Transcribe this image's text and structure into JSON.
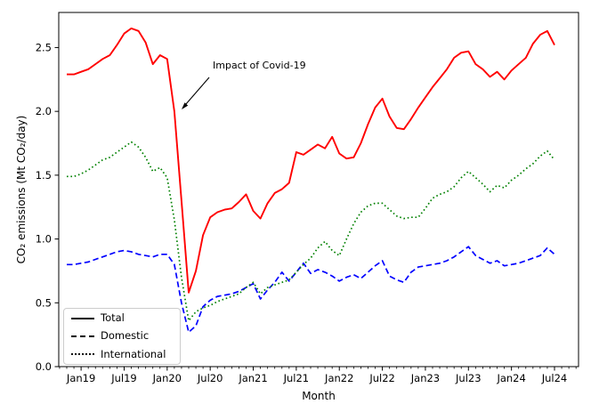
{
  "figure": {
    "background": "#ffffff",
    "annotation": {
      "text": "Impact of Covid-19"
    }
  },
  "chart_data": {
    "type": "line",
    "title": "",
    "xlabel": "Month",
    "ylabel": "CO₂ emissions (Mt CO₂/day)",
    "ylim": [
      0.0,
      2.775
    ],
    "yticks": [
      0.0,
      0.5,
      1.0,
      1.5,
      2.0,
      2.5
    ],
    "ytick_labels": [
      "0.0",
      "0.5",
      "1.0",
      "1.5",
      "2.0",
      "2.5"
    ],
    "xticklabels": [
      "Jan19",
      "Jul19",
      "Jan20",
      "Jul20",
      "Jan21",
      "Jul21",
      "Jan22",
      "Jul22",
      "Jan23",
      "Jul23",
      "Jan24",
      "Jul24"
    ],
    "grid": false,
    "legend_position": "lower left",
    "months": [
      "Nov18",
      "Dec18",
      "Jan19",
      "Feb19",
      "Mar19",
      "Apr19",
      "May19",
      "Jun19",
      "Jul19",
      "Aug19",
      "Sep19",
      "Oct19",
      "Nov19",
      "Dec19",
      "Jan20",
      "Feb20",
      "Mar20",
      "Apr20",
      "May20",
      "Jun20",
      "Jul20",
      "Aug20",
      "Sep20",
      "Oct20",
      "Nov20",
      "Dec20",
      "Jan21",
      "Feb21",
      "Mar21",
      "Apr21",
      "May21",
      "Jun21",
      "Jul21",
      "Aug21",
      "Sep21",
      "Oct21",
      "Nov21",
      "Dec21",
      "Jan22",
      "Feb22",
      "Mar22",
      "Apr22",
      "May22",
      "Jun22",
      "Jul22",
      "Aug22",
      "Sep22",
      "Oct22",
      "Nov22",
      "Dec22",
      "Jan23",
      "Feb23",
      "Mar23",
      "Apr23",
      "May23",
      "Jun23",
      "Jul23",
      "Aug23",
      "Sep23",
      "Oct23",
      "Nov23",
      "Dec23",
      "Jan24",
      "Feb24",
      "Mar24",
      "Apr24",
      "May24",
      "Jun24",
      "Jul24"
    ],
    "series": [
      {
        "name": "Total",
        "color": "#ff0000",
        "style": "solid",
        "values": [
          2.29,
          2.29,
          2.31,
          2.33,
          2.37,
          2.41,
          2.44,
          2.52,
          2.61,
          2.65,
          2.63,
          2.54,
          2.37,
          2.44,
          2.41,
          2.0,
          1.3,
          0.58,
          0.75,
          1.03,
          1.17,
          1.21,
          1.23,
          1.24,
          1.29,
          1.35,
          1.22,
          1.16,
          1.28,
          1.36,
          1.39,
          1.44,
          1.68,
          1.66,
          1.7,
          1.74,
          1.71,
          1.8,
          1.67,
          1.63,
          1.64,
          1.75,
          1.9,
          2.03,
          2.1,
          1.96,
          1.87,
          1.86,
          1.94,
          2.03,
          2.11,
          2.19,
          2.26,
          2.33,
          2.42,
          2.46,
          2.47,
          2.37,
          2.33,
          2.27,
          2.31,
          2.25,
          2.32,
          2.37,
          2.42,
          2.53,
          2.6,
          2.63,
          2.52
        ]
      },
      {
        "name": "Domestic",
        "color": "#0000ff",
        "style": "dashed",
        "values": [
          0.8,
          0.8,
          0.81,
          0.82,
          0.84,
          0.86,
          0.88,
          0.9,
          0.91,
          0.9,
          0.88,
          0.87,
          0.86,
          0.88,
          0.88,
          0.8,
          0.5,
          0.27,
          0.32,
          0.47,
          0.52,
          0.55,
          0.56,
          0.57,
          0.59,
          0.62,
          0.65,
          0.53,
          0.6,
          0.66,
          0.74,
          0.67,
          0.74,
          0.81,
          0.73,
          0.76,
          0.74,
          0.71,
          0.67,
          0.7,
          0.72,
          0.69,
          0.74,
          0.79,
          0.83,
          0.71,
          0.68,
          0.66,
          0.74,
          0.78,
          0.79,
          0.8,
          0.81,
          0.83,
          0.86,
          0.9,
          0.94,
          0.87,
          0.84,
          0.81,
          0.83,
          0.79,
          0.8,
          0.81,
          0.83,
          0.85,
          0.87,
          0.93,
          0.88
        ]
      },
      {
        "name": "International",
        "color": "#008000",
        "style": "dotted",
        "values": [
          1.49,
          1.49,
          1.51,
          1.54,
          1.58,
          1.62,
          1.64,
          1.68,
          1.72,
          1.76,
          1.72,
          1.64,
          1.53,
          1.56,
          1.48,
          1.15,
          0.7,
          0.36,
          0.43,
          0.46,
          0.48,
          0.51,
          0.53,
          0.55,
          0.57,
          0.62,
          0.66,
          0.57,
          0.62,
          0.64,
          0.66,
          0.68,
          0.74,
          0.8,
          0.85,
          0.93,
          0.98,
          0.91,
          0.87,
          1.0,
          1.12,
          1.21,
          1.26,
          1.28,
          1.28,
          1.23,
          1.18,
          1.16,
          1.17,
          1.17,
          1.24,
          1.32,
          1.35,
          1.37,
          1.41,
          1.48,
          1.53,
          1.48,
          1.43,
          1.37,
          1.42,
          1.4,
          1.46,
          1.5,
          1.55,
          1.59,
          1.65,
          1.69,
          1.62
        ]
      }
    ]
  }
}
